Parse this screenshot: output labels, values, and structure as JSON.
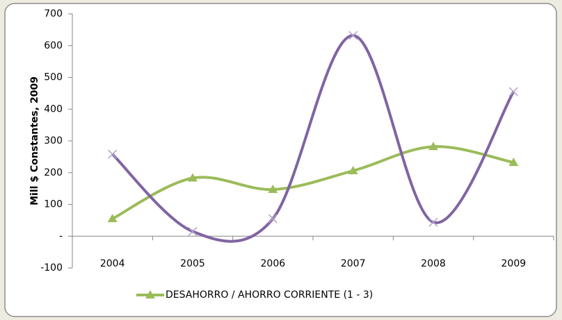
{
  "chart_data": {
    "type": "line",
    "y_label": "Mill $ Constantes, 2009",
    "categories": [
      "2004",
      "2005",
      "2006",
      "2007",
      "2008",
      "2009"
    ],
    "series": [
      {
        "name": "DESAHORRO / AHORRO CORRIENTE (1 - 3)",
        "color": "#9bbb59",
        "marker": "triangle",
        "values": [
          55,
          183,
          147,
          206,
          282,
          232
        ]
      },
      {
        "color": "#8064a2",
        "marker": "x",
        "values": [
          258,
          15,
          55,
          632,
          44,
          455
        ]
      }
    ],
    "ylim": [
      -100,
      700
    ],
    "yticks": [
      -100,
      {
        "value": 0,
        "label": "-"
      },
      100,
      200,
      300,
      400,
      500,
      600,
      700
    ],
    "smooth": true,
    "legend": "bottom"
  }
}
